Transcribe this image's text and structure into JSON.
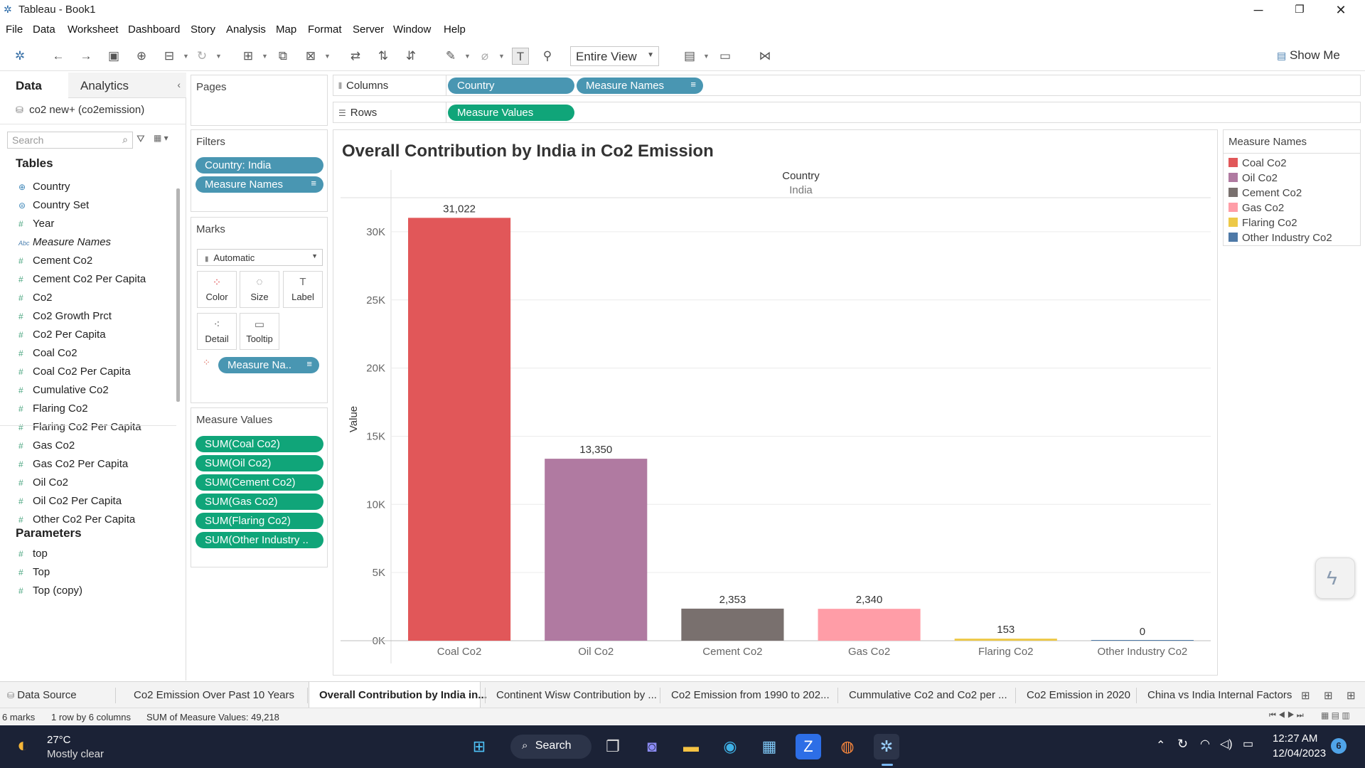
{
  "window": {
    "title": "Tableau - Book1"
  },
  "menu": [
    "File",
    "Data",
    "Worksheet",
    "Dashboard",
    "Story",
    "Analysis",
    "Map",
    "Format",
    "Server",
    "Window",
    "Help"
  ],
  "toolbar": {
    "view_mode": "Entire View",
    "show_me": "Show Me"
  },
  "data_pane": {
    "tab_data": "Data",
    "tab_analytics": "Analytics",
    "datasource": "co2 new+ (co2emission)",
    "search_placeholder": "Search",
    "tables_header": "Tables",
    "fields": [
      {
        "name": "Country",
        "type": "geo"
      },
      {
        "name": "Country Set",
        "type": "set"
      },
      {
        "name": "Year",
        "type": "measure"
      },
      {
        "name": "Measure Names",
        "type": "abc"
      },
      {
        "name": "Cement Co2",
        "type": "measure"
      },
      {
        "name": "Cement Co2 Per Capita",
        "type": "measure"
      },
      {
        "name": "Co2",
        "type": "measure"
      },
      {
        "name": "Co2 Growth Prct",
        "type": "measure"
      },
      {
        "name": "Co2 Per Capita",
        "type": "measure"
      },
      {
        "name": "Coal Co2",
        "type": "measure"
      },
      {
        "name": "Coal Co2 Per Capita",
        "type": "measure"
      },
      {
        "name": "Cumulative Co2",
        "type": "measure"
      },
      {
        "name": "Flaring Co2",
        "type": "measure"
      },
      {
        "name": "Flaring Co2 Per Capita",
        "type": "measure"
      },
      {
        "name": "Gas Co2",
        "type": "measure"
      },
      {
        "name": "Gas Co2 Per Capita",
        "type": "measure"
      },
      {
        "name": "Oil Co2",
        "type": "measure"
      },
      {
        "name": "Oil Co2 Per Capita",
        "type": "measure"
      },
      {
        "name": "Other Co2 Per Capita",
        "type": "measure"
      }
    ],
    "parameters_header": "Parameters",
    "parameters": [
      "top",
      "Top",
      "Top (copy)"
    ]
  },
  "cards": {
    "pages": "Pages",
    "filters": "Filters",
    "filter_pills": [
      "Country: India",
      "Measure Names"
    ],
    "marks": "Marks",
    "mark_type": "Automatic",
    "mark_buttons": [
      "Color",
      "Size",
      "Label",
      "Detail",
      "Tooltip"
    ],
    "marks_pill": "Measure Na..",
    "measure_values": "Measure Values",
    "measure_pills": [
      "SUM(Coal Co2)",
      "SUM(Oil Co2)",
      "SUM(Cement Co2)",
      "SUM(Gas Co2)",
      "SUM(Flaring Co2)",
      "SUM(Other Industry .."
    ]
  },
  "shelves": {
    "columns_label": "Columns",
    "columns_pills": [
      "Country",
      "Measure Names"
    ],
    "rows_label": "Rows",
    "rows_pills": [
      "Measure Values"
    ]
  },
  "chart_data": {
    "type": "bar",
    "title": "Overall Contribution by India in Co2 Emission",
    "header_label": "Country",
    "header_value": "India",
    "ylabel": "Value",
    "categories": [
      "Coal Co2",
      "Oil Co2",
      "Cement Co2",
      "Gas Co2",
      "Flaring Co2",
      "Other Industry Co2"
    ],
    "values": [
      31022,
      13350,
      2353,
      2340,
      153,
      0
    ],
    "data_labels": [
      "31,022",
      "13,350",
      "2,353",
      "2,340",
      "153",
      "0"
    ],
    "colors": [
      "#e15759",
      "#b07aa1",
      "#79706e",
      "#ff9da7",
      "#edc948",
      "#4e79a7"
    ],
    "yticks": [
      0,
      5000,
      10000,
      15000,
      20000,
      25000,
      30000
    ],
    "ytick_labels": [
      "0K",
      "5K",
      "10K",
      "15K",
      "20K",
      "25K",
      "30K"
    ],
    "ylim": [
      0,
      32500
    ],
    "grid": true
  },
  "legend": {
    "title": "Measure Names",
    "items": [
      "Coal Co2",
      "Oil Co2",
      "Cement Co2",
      "Gas Co2",
      "Flaring Co2",
      "Other Industry Co2"
    ]
  },
  "sheet_tabs": {
    "data_source": "Data Source",
    "sheets": [
      "Co2 Emission Over Past 10 Years",
      "Overall Contribution by India in...",
      "Continent Wisw Contribution by ...",
      "Co2 Emission from 1990 to 202...",
      "Cummulative Co2 and Co2 per ...",
      "Co2 Emission in 2020",
      "China vs India Internal Factors"
    ],
    "active_index": 1
  },
  "status": {
    "marks": "6 marks",
    "dims": "1 row by 6 columns",
    "sum": "SUM of Measure Values: 49,218"
  },
  "taskbar": {
    "weather_temp": "27°C",
    "weather_desc": "Mostly clear",
    "search": "Search",
    "time": "12:27 AM",
    "date": "12/04/2023",
    "notif_count": "6"
  }
}
